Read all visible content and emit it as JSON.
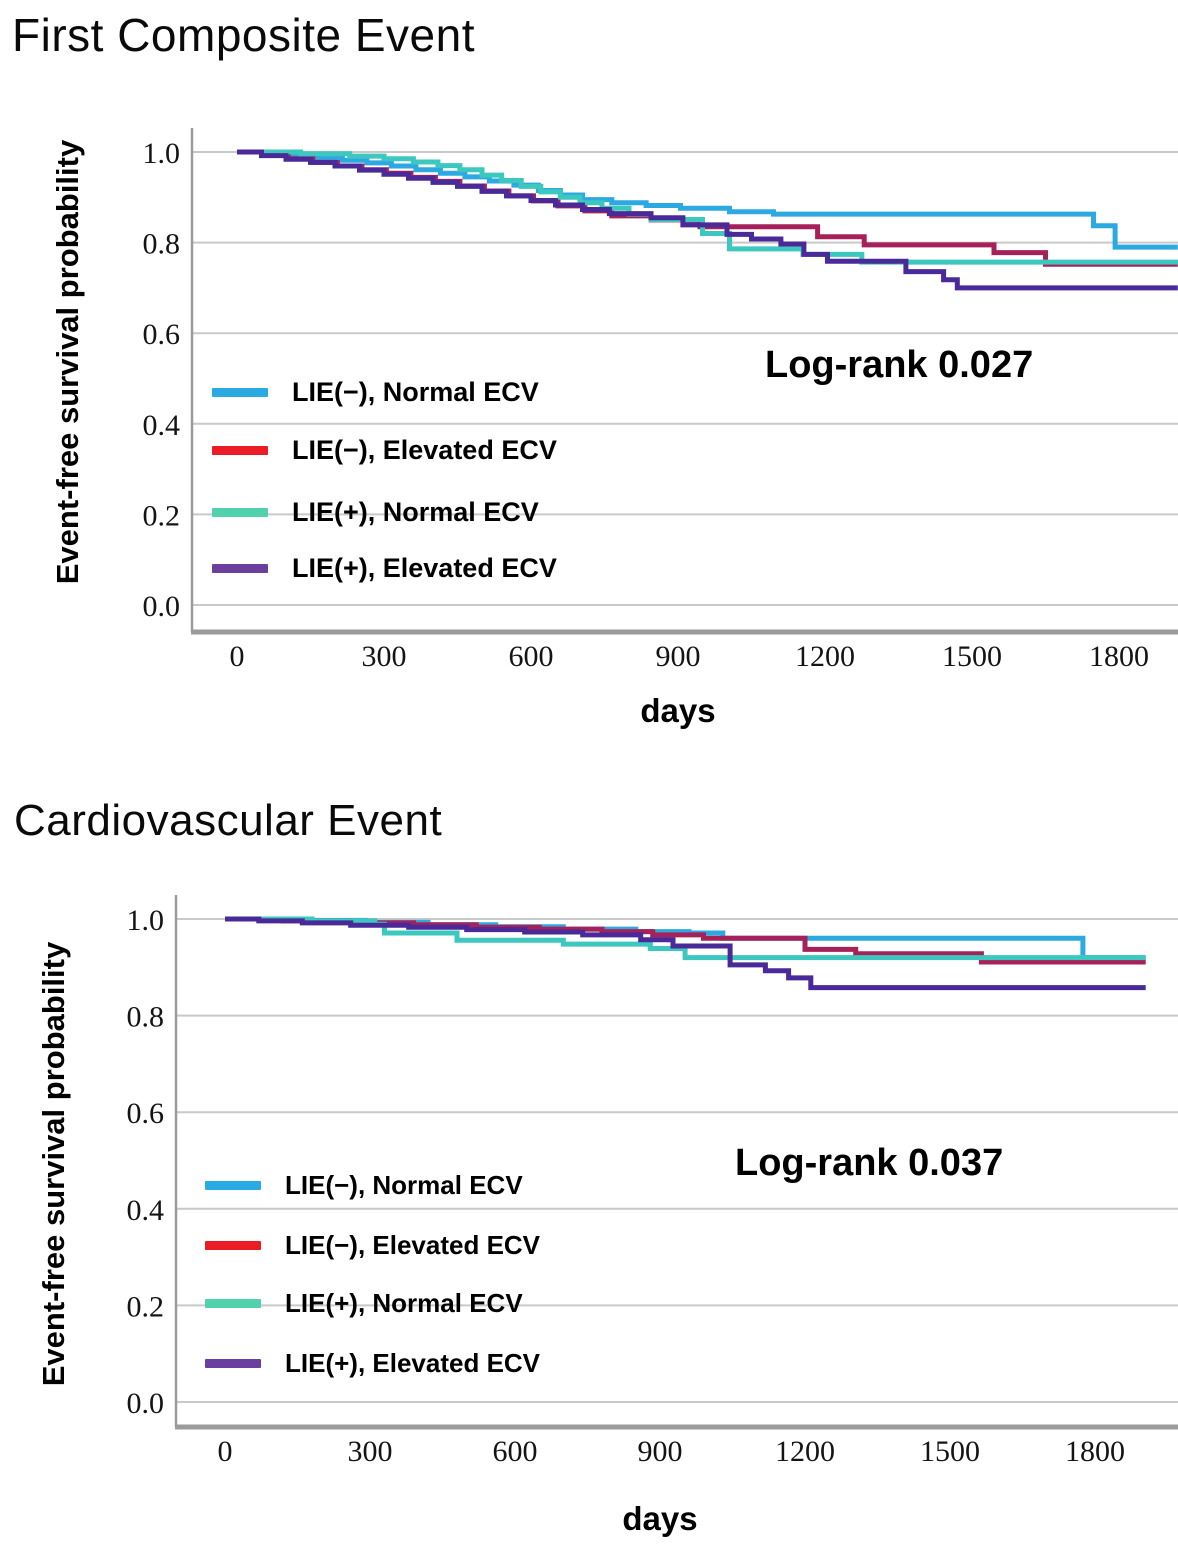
{
  "figure": {
    "type": "kaplan-meier-survival-figure",
    "charts_count": 2
  },
  "colors": {
    "background": "#ffffff",
    "gridline": "#c9c9c9",
    "axis": "#9b9b9b",
    "text": "#000000"
  },
  "chart_data": [
    {
      "type": "line",
      "subtype": "kaplan-meier-step",
      "title": "First Composite Event",
      "annotation": "Log-rank 0.027",
      "xlabel": "days",
      "ylabel": "Event-free survival probability",
      "x_ticks": [
        "0",
        "300",
        "600",
        "900",
        "1200",
        "1500",
        "1800"
      ],
      "x_tick_values": [
        0,
        300,
        600,
        900,
        1200,
        1500,
        1800
      ],
      "y_ticks": [
        "1.0",
        "0.8",
        "0.6",
        "0.4",
        "0.2",
        "0.0"
      ],
      "y_tick_values": [
        1.0,
        0.8,
        0.6,
        0.4,
        0.2,
        0.0
      ],
      "xlim": [
        0,
        1920
      ],
      "ylim": [
        0.0,
        1.0
      ],
      "grid": "horizontal",
      "legend_position": "inside-left",
      "series": [
        {
          "name": "LIE(−), Normal ECV",
          "legend_color": "#29abe2",
          "line_color": "#2ba9e0",
          "steps": [
            [
              0,
              1.0
            ],
            [
              60,
              0.997
            ],
            [
              115,
              0.993
            ],
            [
              165,
              0.988
            ],
            [
              215,
              0.982
            ],
            [
              265,
              0.976
            ],
            [
              315,
              0.969
            ],
            [
              365,
              0.961
            ],
            [
              415,
              0.953
            ],
            [
              465,
              0.945
            ],
            [
              515,
              0.936
            ],
            [
              565,
              0.927
            ],
            [
              615,
              0.915
            ],
            [
              660,
              0.905
            ],
            [
              705,
              0.895
            ],
            [
              765,
              0.888
            ],
            [
              835,
              0.882
            ],
            [
              905,
              0.876
            ],
            [
              1005,
              0.868
            ],
            [
              1095,
              0.863
            ],
            [
              1748,
              0.837
            ],
            [
              1792,
              0.79
            ],
            [
              1920,
              0.79
            ]
          ]
        },
        {
          "name": "LIE(−), Elevated ECV",
          "legend_color": "#ec1c24",
          "line_color": "#a6205a",
          "steps": [
            [
              0,
              1.0
            ],
            [
              55,
              0.993
            ],
            [
              105,
              0.985
            ],
            [
              155,
              0.977
            ],
            [
              205,
              0.969
            ],
            [
              255,
              0.961
            ],
            [
              305,
              0.953
            ],
            [
              355,
              0.944
            ],
            [
              405,
              0.935
            ],
            [
              455,
              0.925
            ],
            [
              505,
              0.914
            ],
            [
              555,
              0.903
            ],
            [
              605,
              0.892
            ],
            [
              655,
              0.881
            ],
            [
              710,
              0.87
            ],
            [
              765,
              0.859
            ],
            [
              845,
              0.85
            ],
            [
              945,
              0.835
            ],
            [
              1185,
              0.813
            ],
            [
              1280,
              0.795
            ],
            [
              1545,
              0.778
            ],
            [
              1650,
              0.752
            ],
            [
              1920,
              0.752
            ]
          ]
        },
        {
          "name": "LIE(+), Normal ECV",
          "legend_color": "#52d1ae",
          "line_color": "#3cc8be",
          "steps": [
            [
              0,
              1.0
            ],
            [
              130,
              0.996
            ],
            [
              230,
              0.991
            ],
            [
              300,
              0.985
            ],
            [
              360,
              0.978
            ],
            [
              410,
              0.97
            ],
            [
              455,
              0.961
            ],
            [
              500,
              0.949
            ],
            [
              540,
              0.937
            ],
            [
              580,
              0.924
            ],
            [
              620,
              0.912
            ],
            [
              660,
              0.9
            ],
            [
              700,
              0.888
            ],
            [
              745,
              0.876
            ],
            [
              800,
              0.863
            ],
            [
              845,
              0.851
            ],
            [
              950,
              0.82
            ],
            [
              1005,
              0.786
            ],
            [
              1155,
              0.774
            ],
            [
              1275,
              0.757
            ],
            [
              1920,
              0.753
            ]
          ]
        },
        {
          "name": "LIE(+), Elevated ECV",
          "legend_color": "#6b3fa0",
          "line_color": "#4a2a99",
          "steps": [
            [
              0,
              1.0
            ],
            [
              50,
              0.992
            ],
            [
              100,
              0.984
            ],
            [
              150,
              0.977
            ],
            [
              200,
              0.969
            ],
            [
              250,
              0.96
            ],
            [
              300,
              0.951
            ],
            [
              350,
              0.942
            ],
            [
              400,
              0.933
            ],
            [
              450,
              0.924
            ],
            [
              500,
              0.913
            ],
            [
              550,
              0.903
            ],
            [
              600,
              0.893
            ],
            [
              650,
              0.883
            ],
            [
              705,
              0.873
            ],
            [
              760,
              0.864
            ],
            [
              845,
              0.855
            ],
            [
              910,
              0.839
            ],
            [
              1000,
              0.818
            ],
            [
              1050,
              0.808
            ],
            [
              1110,
              0.797
            ],
            [
              1157,
              0.774
            ],
            [
              1205,
              0.759
            ],
            [
              1365,
              0.736
            ],
            [
              1442,
              0.718
            ],
            [
              1470,
              0.7
            ],
            [
              1920,
              0.7
            ]
          ]
        }
      ]
    },
    {
      "type": "line",
      "subtype": "kaplan-meier-step",
      "title": "Cardiovascular Event",
      "annotation": "Log-rank 0.037",
      "xlabel": "days",
      "ylabel": "Event-free survival probability",
      "x_ticks": [
        "0",
        "300",
        "600",
        "900",
        "1200",
        "1500",
        "1800"
      ],
      "x_tick_values": [
        0,
        300,
        600,
        900,
        1200,
        1500,
        1800
      ],
      "y_ticks": [
        "1.0",
        "0.8",
        "0.6",
        "0.4",
        "0.2",
        "0.0"
      ],
      "y_tick_values": [
        1.0,
        0.8,
        0.6,
        0.4,
        0.2,
        0.0
      ],
      "xlim": [
        0,
        1973
      ],
      "ylim": [
        0.0,
        1.0
      ],
      "grid": "horizontal",
      "legend_position": "inside-left",
      "series": [
        {
          "name": "LIE(−), Normal ECV",
          "legend_color": "#29abe2",
          "line_color": "#2ba9e0",
          "steps": [
            [
              0,
              1.0
            ],
            [
              140,
              0.997
            ],
            [
              290,
              0.993
            ],
            [
              420,
              0.988
            ],
            [
              560,
              0.984
            ],
            [
              700,
              0.979
            ],
            [
              850,
              0.974
            ],
            [
              960,
              0.971
            ],
            [
              1030,
              0.96
            ],
            [
              1775,
              0.92
            ],
            [
              1905,
              0.92
            ]
          ]
        },
        {
          "name": "LIE(−), Elevated ECV",
          "legend_color": "#ec1c24",
          "line_color": "#a6205a",
          "steps": [
            [
              0,
              1.0
            ],
            [
              120,
              0.996
            ],
            [
              260,
              0.992
            ],
            [
              390,
              0.988
            ],
            [
              520,
              0.983
            ],
            [
              650,
              0.979
            ],
            [
              780,
              0.974
            ],
            [
              885,
              0.967
            ],
            [
              990,
              0.96
            ],
            [
              1200,
              0.937
            ],
            [
              1305,
              0.928
            ],
            [
              1565,
              0.911
            ],
            [
              1905,
              0.911
            ]
          ]
        },
        {
          "name": "LIE(+), Normal ECV",
          "legend_color": "#52d1ae",
          "line_color": "#3cc8be",
          "steps": [
            [
              0,
              1.0
            ],
            [
              180,
              0.996
            ],
            [
              310,
              0.989
            ],
            [
              330,
              0.971
            ],
            [
              480,
              0.956
            ],
            [
              700,
              0.948
            ],
            [
              880,
              0.939
            ],
            [
              952,
              0.92
            ],
            [
              1905,
              0.92
            ]
          ]
        },
        {
          "name": "LIE(+), Elevated ECV",
          "legend_color": "#6b3fa0",
          "line_color": "#4a2a99",
          "steps": [
            [
              0,
              1.0
            ],
            [
              70,
              0.996
            ],
            [
              160,
              0.992
            ],
            [
              260,
              0.987
            ],
            [
              380,
              0.983
            ],
            [
              500,
              0.978
            ],
            [
              620,
              0.973
            ],
            [
              740,
              0.967
            ],
            [
              860,
              0.957
            ],
            [
              927,
              0.944
            ],
            [
              1045,
              0.905
            ],
            [
              1118,
              0.893
            ],
            [
              1166,
              0.878
            ],
            [
              1212,
              0.858
            ],
            [
              1905,
              0.858
            ]
          ]
        }
      ]
    }
  ]
}
